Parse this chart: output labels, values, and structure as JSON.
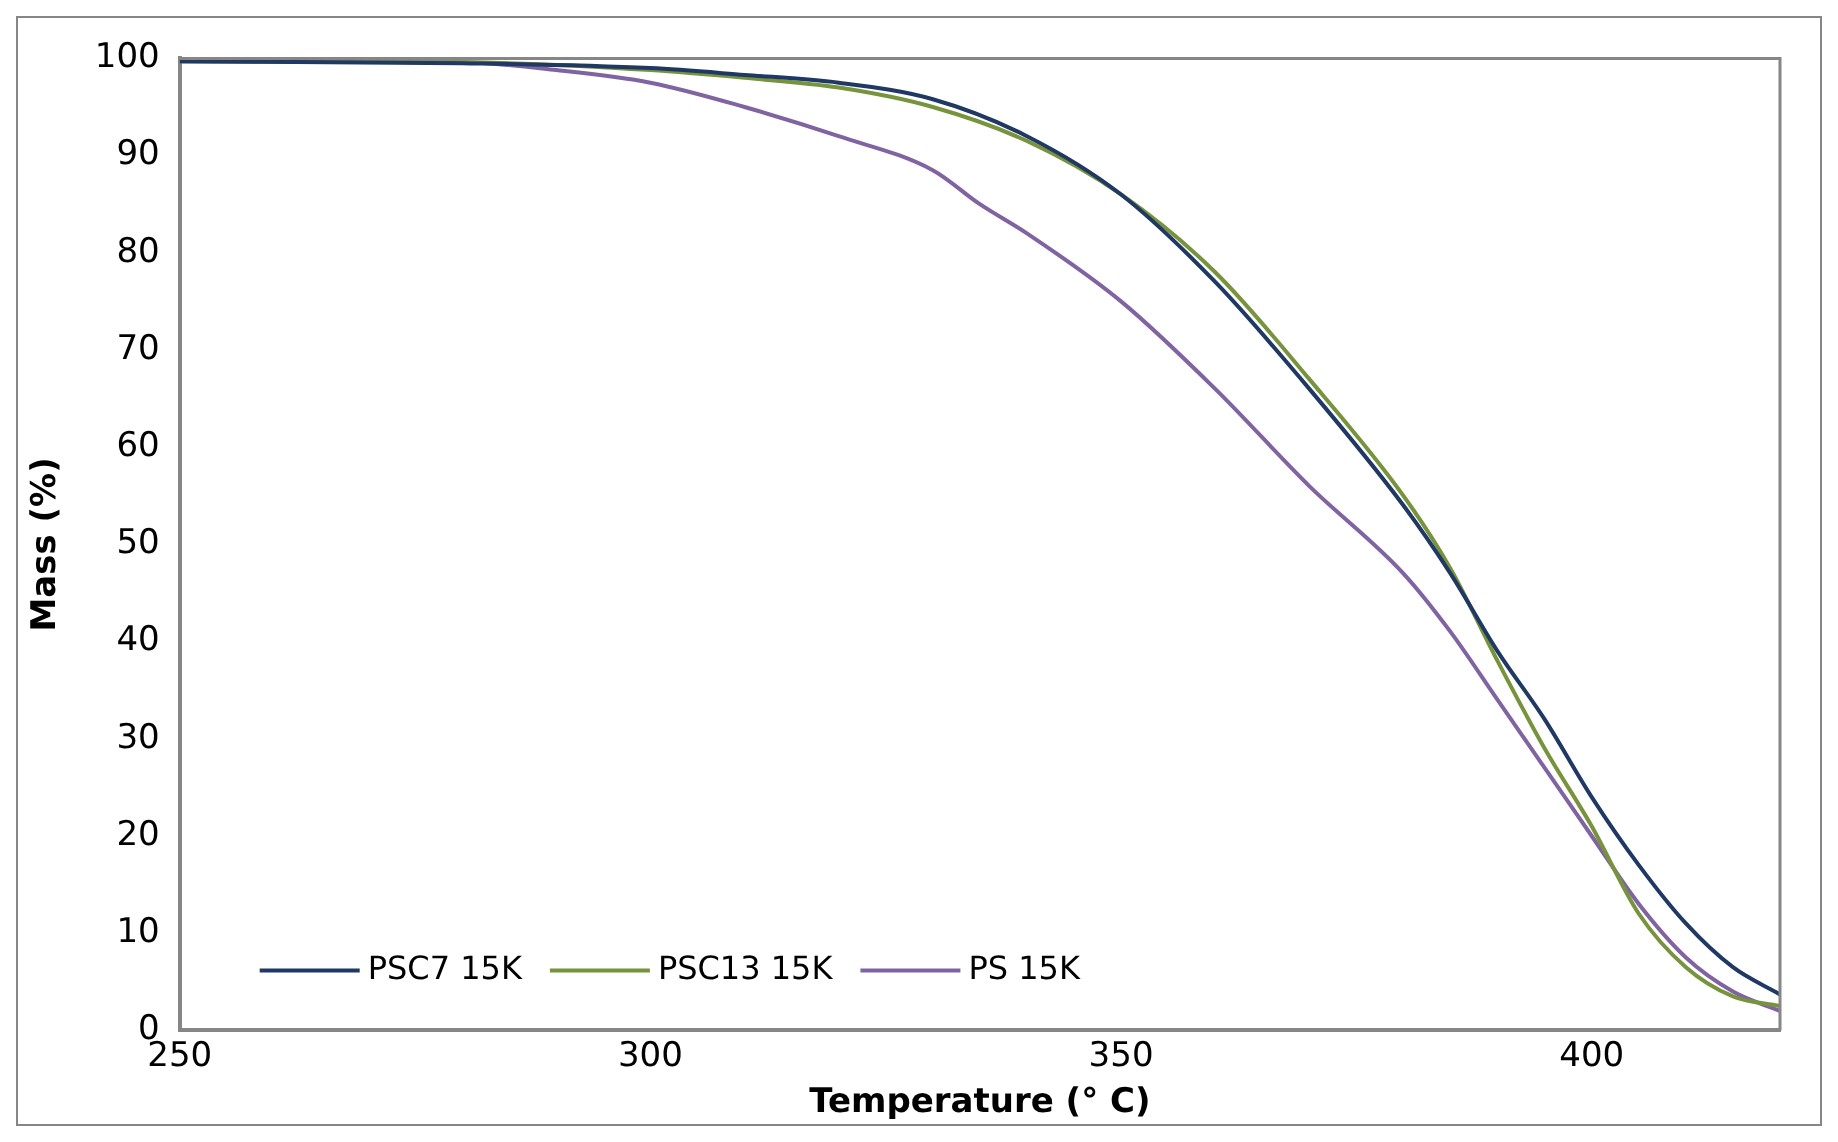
{
  "chart_data": {
    "type": "line",
    "xlabel": "Temperature (° C)",
    "ylabel": "Mass (%)",
    "xlim": [
      250,
      420
    ],
    "xticks": [
      250,
      300,
      350,
      400
    ],
    "ylim": [
      0,
      100
    ],
    "yticks": [
      0,
      10,
      20,
      30,
      40,
      50,
      60,
      70,
      80,
      90,
      100
    ],
    "grid": false,
    "legend": "bottom left",
    "marker": "none",
    "line_style": "solid",
    "series": [
      {
        "name": "PSC7 15K",
        "color": "#1f3864",
        "x": [
          250,
          280,
          300,
          310,
          320,
          330,
          340,
          350,
          360,
          370,
          380,
          385,
          390,
          395,
          400,
          405,
          410,
          415,
          420
        ],
        "values": [
          99.7,
          99.5,
          99,
          98.3,
          97.5,
          95.8,
          92,
          86,
          77,
          66,
          54,
          47,
          39,
          32,
          24,
          17,
          11,
          6.5,
          3.7
        ]
      },
      {
        "name": "PSC13 15K",
        "color": "#77933c",
        "x": [
          250,
          280,
          300,
          310,
          320,
          330,
          340,
          350,
          360,
          370,
          380,
          385,
          390,
          395,
          400,
          405,
          410,
          415,
          420
        ],
        "values": [
          99.7,
          99.6,
          98.8,
          98,
          97,
          95,
          91.5,
          86,
          78,
          67,
          55,
          47.5,
          38,
          29,
          21,
          12,
          6.5,
          3.5,
          2.5
        ]
      },
      {
        "name": "PS 15K",
        "color": "#8064a2",
        "x": [
          250,
          280,
          290,
          300,
          310,
          320,
          330,
          335,
          340,
          350,
          360,
          370,
          380,
          385,
          390,
          395,
          400,
          405,
          410,
          415,
          420
        ],
        "values": [
          99.7,
          99.6,
          98.8,
          97.5,
          95,
          92,
          88.5,
          85,
          82,
          75,
          66,
          56,
          47,
          41,
          34,
          27,
          20,
          13,
          7.5,
          4,
          2
        ]
      }
    ]
  }
}
